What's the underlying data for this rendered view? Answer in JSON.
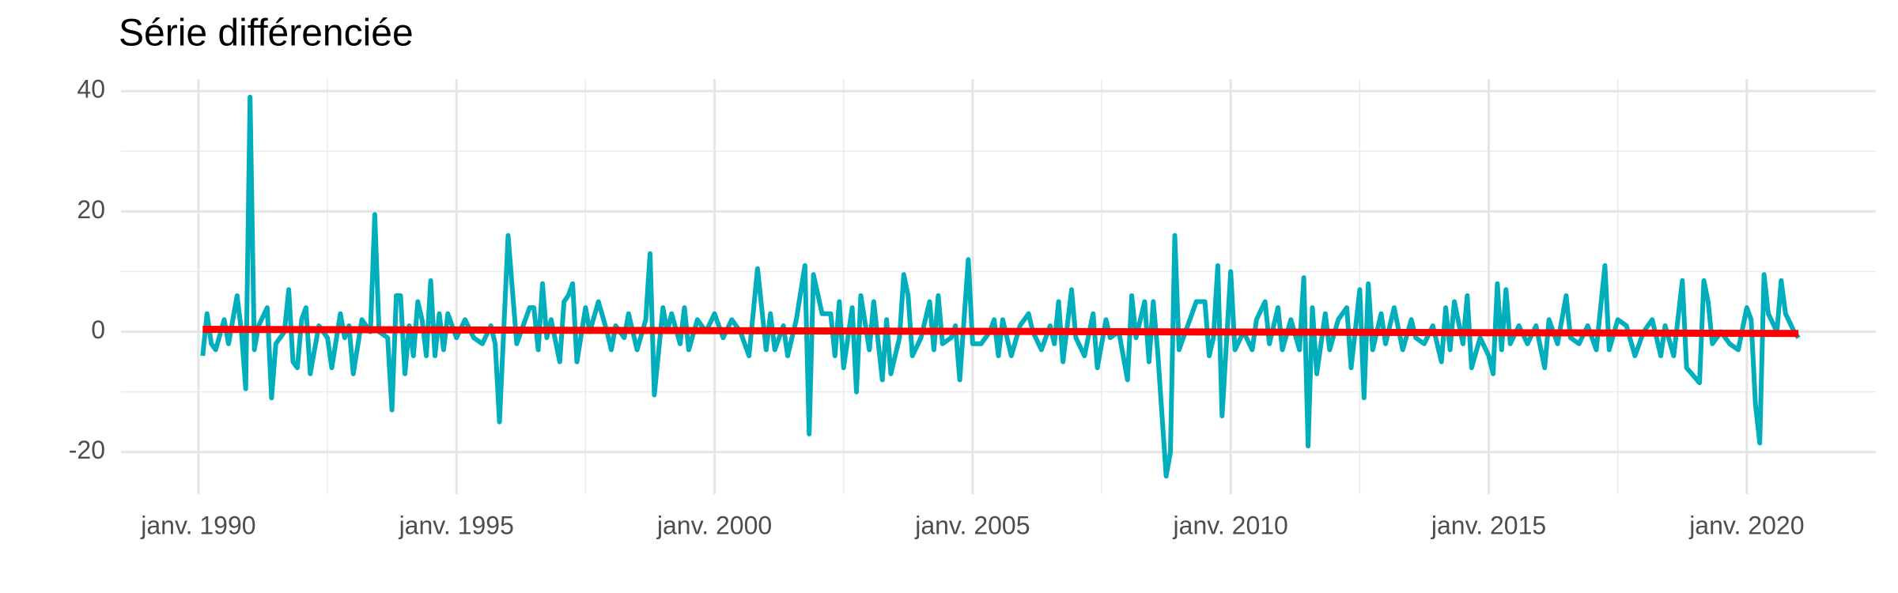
{
  "chart_data": {
    "type": "line",
    "title": "Série différenciée",
    "xlim": [
      "1988-07",
      "2022-07"
    ],
    "xticks": [
      {
        "value": "1990-01",
        "label": "janv. 1990"
      },
      {
        "value": "1995-01",
        "label": "janv. 1995"
      },
      {
        "value": "2000-01",
        "label": "janv. 2000"
      },
      {
        "value": "2005-01",
        "label": "janv. 2005"
      },
      {
        "value": "2010-01",
        "label": "janv. 2010"
      },
      {
        "value": "2015-01",
        "label": "janv. 2015"
      },
      {
        "value": "2020-01",
        "label": "janv. 2020"
      }
    ],
    "ylim": [
      -27,
      42
    ],
    "yticks": [
      -20,
      0,
      20,
      40
    ],
    "grid": true,
    "series": [
      {
        "color": "#00afbb",
        "x": [
          "1990-02",
          "1990-03",
          "1990-04",
          "1990-05",
          "1990-07",
          "1990-08",
          "1990-10",
          "1990-11",
          "1990-12",
          "1991-01",
          "1991-02",
          "1991-03",
          "1991-05",
          "1991-06",
          "1991-07",
          "1991-09",
          "1991-10",
          "1991-11",
          "1991-12",
          "1992-01",
          "1992-02",
          "1992-03",
          "1992-05",
          "1992-07",
          "1992-08",
          "1992-10",
          "1992-11",
          "1992-12",
          "1993-01",
          "1993-03",
          "1993-05",
          "1993-06",
          "1993-07",
          "1993-09",
          "1993-10",
          "1993-11",
          "1993-12",
          "1994-01",
          "1994-02",
          "1994-03",
          "1994-04",
          "1994-05",
          "1994-06",
          "1994-07",
          "1994-08",
          "1994-09",
          "1994-10",
          "1994-11",
          "1995-01",
          "1995-03",
          "1995-05",
          "1995-07",
          "1995-09",
          "1995-10",
          "1995-11",
          "1996-01",
          "1996-02",
          "1996-03",
          "1996-04",
          "1996-06",
          "1996-07",
          "1996-08",
          "1996-09",
          "1996-10",
          "1996-11",
          "1997-01",
          "1997-02",
          "1997-03",
          "1997-04",
          "1997-05",
          "1997-07",
          "1997-08",
          "1997-10",
          "1997-12",
          "1998-01",
          "1998-02",
          "1998-04",
          "1998-05",
          "1998-07",
          "1998-09",
          "1998-10",
          "1998-11",
          "1999-01",
          "1999-02",
          "1999-03",
          "1999-05",
          "1999-06",
          "1999-07",
          "1999-09",
          "1999-11",
          "2000-01",
          "2000-03",
          "2000-05",
          "2000-07",
          "2000-09",
          "2000-11",
          "2001-01",
          "2001-02",
          "2001-03",
          "2001-05",
          "2001-06",
          "2001-08",
          "2001-10",
          "2001-11",
          "2001-12",
          "2002-02",
          "2002-04",
          "2002-05",
          "2002-06",
          "2002-07",
          "2002-09",
          "2002-10",
          "2002-11",
          "2003-01",
          "2003-02",
          "2003-04",
          "2003-05",
          "2003-06",
          "2003-08",
          "2003-09",
          "2003-10",
          "2003-11",
          "2004-01",
          "2004-03",
          "2004-04",
          "2004-05",
          "2004-06",
          "2004-08",
          "2004-09",
          "2004-10",
          "2004-12",
          "2005-01",
          "2005-03",
          "2005-05",
          "2005-06",
          "2005-07",
          "2005-08",
          "2005-10",
          "2005-12",
          "2006-02",
          "2006-03",
          "2006-05",
          "2006-07",
          "2006-08",
          "2006-09",
          "2006-10",
          "2006-12",
          "2007-01",
          "2007-03",
          "2007-05",
          "2007-06",
          "2007-08",
          "2007-09",
          "2007-11",
          "2008-01",
          "2008-02",
          "2008-03",
          "2008-05",
          "2008-06",
          "2008-07",
          "2008-08",
          "2008-10",
          "2008-11",
          "2008-12",
          "2009-01",
          "2009-03",
          "2009-05",
          "2009-07",
          "2009-08",
          "2009-09",
          "2009-10",
          "2009-11",
          "2010-01",
          "2010-02",
          "2010-04",
          "2010-06",
          "2010-07",
          "2010-09",
          "2010-10",
          "2010-12",
          "2011-01",
          "2011-03",
          "2011-05",
          "2011-06",
          "2011-07",
          "2011-08",
          "2011-09",
          "2011-11",
          "2011-12",
          "2012-02",
          "2012-04",
          "2012-05",
          "2012-07",
          "2012-08",
          "2012-09",
          "2012-10",
          "2012-12",
          "2013-01",
          "2013-03",
          "2013-05",
          "2013-07",
          "2013-08",
          "2013-10",
          "2013-12",
          "2014-02",
          "2014-03",
          "2014-04",
          "2014-05",
          "2014-07",
          "2014-08",
          "2014-09",
          "2014-11",
          "2015-01",
          "2015-02",
          "2015-03",
          "2015-04",
          "2015-05",
          "2015-06",
          "2015-08",
          "2015-10",
          "2015-12",
          "2016-02",
          "2016-03",
          "2016-05",
          "2016-07",
          "2016-08",
          "2016-10",
          "2016-12",
          "2017-02",
          "2017-04",
          "2017-05",
          "2017-07",
          "2017-09",
          "2017-11",
          "2018-01",
          "2018-03",
          "2018-05",
          "2018-06",
          "2018-08",
          "2018-10",
          "2018-11",
          "2019-02",
          "2019-03",
          "2019-04",
          "2019-05",
          "2019-07",
          "2019-09",
          "2019-11",
          "2020-01",
          "2020-02",
          "2020-03",
          "2020-04",
          "2020-05",
          "2020-06",
          "2020-08",
          "2020-09",
          "2020-10",
          "2020-12",
          "2021-01"
        ],
        "values": [
          -4,
          3,
          -2,
          -3,
          2,
          -2,
          6,
          0,
          -9.5,
          39,
          -3,
          1,
          4,
          -11,
          -2,
          0,
          7,
          -5,
          -6,
          2,
          4,
          -7,
          1,
          -1,
          -6,
          3,
          -1,
          1,
          -7,
          2,
          0,
          19.5,
          0,
          -1,
          -13,
          6,
          6,
          -7,
          1,
          -4,
          5,
          2,
          -4,
          8.5,
          -4,
          3,
          -3,
          3,
          -1,
          2,
          -1,
          -2,
          1,
          -2,
          -15,
          16,
          7,
          -2,
          0,
          4,
          4,
          -3,
          8,
          -1,
          2,
          -5,
          5,
          6,
          8,
          -5,
          4,
          0,
          5,
          0,
          -3,
          1,
          -1,
          3,
          -3,
          2,
          13,
          -10.5,
          4,
          0,
          3,
          -2,
          4,
          -3,
          2,
          0,
          3,
          -1,
          2,
          0,
          -4,
          10.5,
          -3,
          3,
          -3,
          1,
          -4,
          2,
          11,
          -17,
          9.5,
          3,
          3,
          -4,
          5,
          -6,
          4,
          -10,
          6,
          -3,
          5,
          -8,
          2,
          -7,
          -1,
          9.5,
          6,
          -4,
          -1,
          5,
          -3,
          6,
          -2,
          -1,
          1,
          -8,
          12,
          -2,
          -2,
          0,
          2,
          -4,
          2,
          -4,
          1,
          3,
          0,
          -3,
          1,
          -2,
          5,
          -5,
          7,
          -1,
          -4,
          3,
          -6,
          2,
          -1,
          0,
          -8,
          6,
          -1,
          5,
          -5,
          5,
          -3,
          -24,
          -20,
          16,
          -3,
          1,
          5,
          5,
          -4,
          -1,
          11,
          -14,
          10,
          -3,
          0,
          -3,
          2,
          5,
          -2,
          4,
          -3,
          2,
          -3,
          9,
          -19,
          4,
          -7,
          3,
          -3,
          2,
          4,
          -6,
          7,
          -11,
          8,
          -3,
          3,
          -2,
          4,
          -3,
          2,
          -1,
          -2,
          1,
          -5,
          4,
          -3,
          5,
          -2,
          6,
          -6,
          -1,
          -4,
          -7,
          8,
          -3,
          7,
          -2,
          1,
          -2,
          1,
          -6,
          2,
          -2,
          6,
          -1,
          -2,
          1,
          -3,
          11,
          -3,
          2,
          1,
          -4,
          0,
          2,
          -4,
          1,
          -4,
          8.5,
          -6,
          -8.5,
          8.5,
          5,
          -2,
          0,
          -2,
          -3,
          4,
          2,
          -12,
          -18.5,
          9.5,
          3,
          0,
          8.5,
          3,
          0,
          -1
        ]
      },
      {
        "color": "#ff0000",
        "x": [
          "1990-02",
          "2021-01"
        ],
        "values": [
          0.4,
          -0.3
        ]
      }
    ]
  }
}
